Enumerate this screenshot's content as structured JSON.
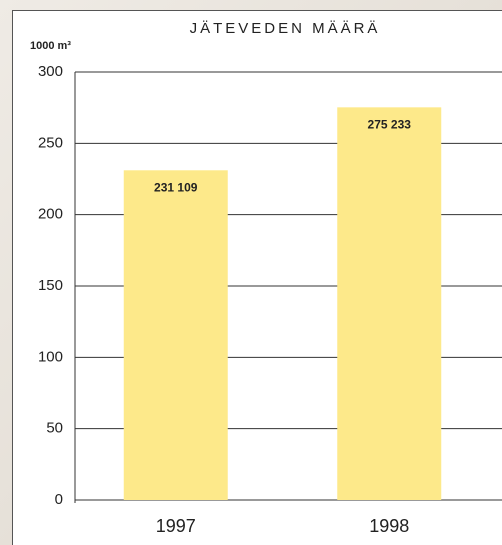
{
  "chart_data": {
    "type": "bar",
    "title": "JÄTEVEDEN MÄÄRÄ",
    "y_label": "1000 m³",
    "categories": [
      "1997",
      "1998"
    ],
    "values": [
      231.109,
      275.233
    ],
    "value_labels": [
      "231 109",
      "275 233"
    ],
    "color": "#fde98a",
    "ylim": [
      0,
      300
    ],
    "yticks": [
      0,
      50,
      100,
      150,
      200,
      250,
      300
    ],
    "grid": true
  }
}
